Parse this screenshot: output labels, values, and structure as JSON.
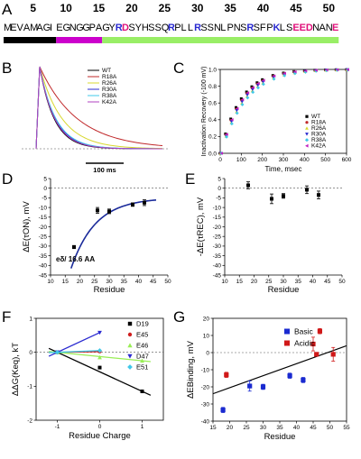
{
  "panel_labels": {
    "A": "A",
    "B": "B",
    "C": "C",
    "D": "D",
    "E": "E",
    "F": "F",
    "G": "G"
  },
  "sequence": {
    "numbers": [
      "5",
      "10",
      "15",
      "20",
      "25",
      "30",
      "35",
      "40",
      "45",
      "50"
    ],
    "text": "MEVAMAGIEGNGGPAGYRDSYHSSQRPLLRSSNLPNSRSFPKLSEEDNANE",
    "basic_color": "#2a2ad0",
    "acidic_color": "#e0107a",
    "basic_positions": [
      18,
      26,
      30,
      38,
      42
    ],
    "acidic_positions": [
      19,
      45,
      46,
      47,
      51
    ],
    "bar_segments": [
      {
        "start": 1,
        "end": 8,
        "color": "#000000"
      },
      {
        "start": 9,
        "end": 15,
        "color": "#cc00cc"
      },
      {
        "start": 16,
        "end": 51,
        "color": "#99ee66"
      }
    ]
  },
  "chart_data": [
    {
      "panel": "B",
      "type": "line",
      "title": "",
      "xlabel": "",
      "ylabel": "",
      "scalebar_label": "100 ms",
      "series": [
        {
          "name": "WT",
          "color": "#000000",
          "tau": 1
        },
        {
          "name": "R18A",
          "color": "#c0282a",
          "tau": 2.6
        },
        {
          "name": "R26A",
          "color": "#d8d830",
          "tau": 1.55
        },
        {
          "name": "R30A",
          "color": "#2a2ad0",
          "tau": 1.08
        },
        {
          "name": "R38A",
          "color": "#40c8e8",
          "tau": 1.12
        },
        {
          "name": "K42A",
          "color": "#b040c0",
          "tau": 1.04
        }
      ]
    },
    {
      "panel": "C",
      "type": "scatter",
      "title": "",
      "xlabel": "Time, msec",
      "ylabel": "Inactivation Recovery (-100 mV)",
      "xlim": [
        0,
        600
      ],
      "ylim": [
        0.0,
        1.0
      ],
      "xticks": [
        "0",
        "100",
        "200",
        "300",
        "400",
        "500",
        "600"
      ],
      "yticks": [
        "0.0",
        "0.2",
        "0.4",
        "0.6",
        "0.8",
        "1.0"
      ],
      "x": [
        0,
        25,
        50,
        75,
        100,
        125,
        150,
        175,
        200,
        250,
        300,
        350,
        400,
        450,
        500,
        550,
        600
      ],
      "series": [
        {
          "name": "WT",
          "color": "#000000",
          "marker": "square",
          "tau": 95
        },
        {
          "name": "R18A",
          "color": "#c0282a",
          "marker": "circle",
          "tau": 100
        },
        {
          "name": "R26A",
          "color": "#d8d830",
          "marker": "triangle",
          "tau": 110
        },
        {
          "name": "R30A",
          "color": "#2a2ad0",
          "marker": "triangle-down",
          "tau": 105
        },
        {
          "name": "R38A",
          "color": "#40c8e8",
          "marker": "diamond",
          "tau": 115
        },
        {
          "name": "K42A",
          "color": "#c020c0",
          "marker": "triangle-left",
          "tau": 98
        }
      ]
    },
    {
      "panel": "D",
      "type": "scatter",
      "title": "",
      "xlabel": "Residue",
      "ylabel": "ΔE(τON), mV",
      "xlim": [
        10,
        50
      ],
      "ylim": [
        -45,
        5
      ],
      "xticks": [
        "10",
        "15",
        "20",
        "25",
        "30",
        "35",
        "40",
        "45",
        "50"
      ],
      "yticks": [
        "-45",
        "-40",
        "-35",
        "-30",
        "-25",
        "-20",
        "-15",
        "-10",
        "-5",
        "0",
        "5"
      ],
      "x": [
        18,
        26,
        30,
        38,
        42
      ],
      "y": [
        -30.5,
        -11.5,
        -12,
        -8.5,
        -7.5
      ],
      "yerr": [
        0.8,
        1.5,
        1.2,
        0.9,
        1.5
      ],
      "fit_label": "eδ/ 16.6 AA",
      "fit": {
        "a": -5,
        "b": -85,
        "scale": 16.6,
        "x0": 10,
        "color": "#1a2a9a"
      }
    },
    {
      "panel": "E",
      "type": "scatter",
      "title": "",
      "xlabel": "Residue",
      "ylabel": "-ΔE(τREC), mV",
      "xlim": [
        10,
        50
      ],
      "ylim": [
        -45,
        5
      ],
      "xticks": [
        "10",
        "15",
        "20",
        "25",
        "30",
        "35",
        "40",
        "45",
        "50"
      ],
      "yticks": [
        "-45",
        "-40",
        "-35",
        "-30",
        "-25",
        "-20",
        "-15",
        "-10",
        "-5",
        "0",
        "5"
      ],
      "x": [
        18,
        26,
        30,
        38,
        42
      ],
      "y": [
        1.5,
        -5.5,
        -4,
        -0.8,
        -3.5
      ],
      "yerr": [
        1.8,
        2.5,
        1.2,
        2.0,
        2.0
      ]
    },
    {
      "panel": "F",
      "type": "scatter",
      "title": "",
      "xlabel": "Residue Charge",
      "ylabel": "ΔΔG(Keq), kT",
      "xlim": [
        -1.5,
        1.5
      ],
      "ylim": [
        -2,
        1
      ],
      "xticks": [
        "-1",
        "0",
        "1"
      ],
      "yticks": [
        "-2",
        "-1",
        "0",
        "1"
      ],
      "series": [
        {
          "name": "D19",
          "color": "#000000",
          "marker": "square",
          "x": [
            -1,
            0,
            1
          ],
          "y": [
            0,
            -0.45,
            -1.15
          ]
        },
        {
          "name": "E45",
          "color": "#d02020",
          "marker": "circle",
          "x": [
            -1,
            0
          ],
          "y": [
            0,
            0.02
          ]
        },
        {
          "name": "E46",
          "color": "#99ee55",
          "marker": "triangle",
          "x": [
            -1,
            0,
            1
          ],
          "y": [
            0,
            -0.15,
            -0.25
          ]
        },
        {
          "name": "D47",
          "color": "#2a2ad0",
          "marker": "triangle-down",
          "x": [
            -1,
            0
          ],
          "y": [
            0,
            0.58
          ]
        },
        {
          "name": "E51",
          "color": "#40c8e8",
          "marker": "diamond",
          "x": [
            -1,
            0
          ],
          "y": [
            0,
            0.05
          ]
        }
      ]
    },
    {
      "panel": "G",
      "type": "scatter",
      "title": "",
      "xlabel": "Residue",
      "ylabel": "ΔEBinding, mV",
      "xlim": [
        15,
        55
      ],
      "ylim": [
        -40,
        20
      ],
      "xticks": [
        "15",
        "20",
        "25",
        "30",
        "35",
        "40",
        "45",
        "50",
        "55"
      ],
      "yticks": [
        "-40",
        "-30",
        "-20",
        "-10",
        "0",
        "10",
        "20"
      ],
      "series": [
        {
          "name": "Basic",
          "color": "#1a2ad0",
          "x": [
            18,
            26,
            30,
            38,
            42
          ],
          "y": [
            -33.5,
            -19.5,
            -20,
            -13.5,
            -16
          ],
          "yerr": [
            1.5,
            3,
            1.5,
            1.5,
            1.5
          ]
        },
        {
          "name": "Acidic",
          "color": "#d01818",
          "x": [
            19,
            45,
            46,
            47,
            51
          ],
          "y": [
            -13,
            5,
            -1,
            12.5,
            -1
          ],
          "yerr": [
            1.5,
            4,
            1,
            1.5,
            4
          ]
        }
      ],
      "fit": {
        "x1": 15,
        "y1": -24,
        "x2": 55,
        "y2": 4,
        "color": "#000000"
      }
    }
  ]
}
